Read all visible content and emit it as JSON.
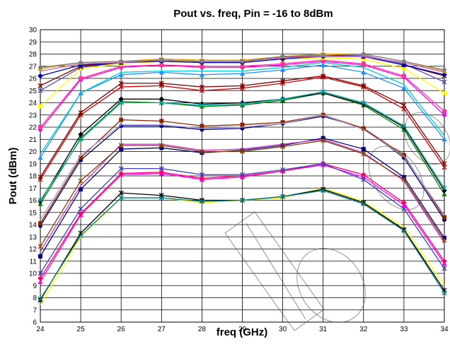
{
  "chart_data": {
    "type": "line",
    "title": "Pout vs. freq, Pin = -16 to 8dBm",
    "xlabel": "freq (GHz)",
    "ylabel": "Pout (dBm)",
    "xlim": [
      24,
      34
    ],
    "ylim": [
      6,
      30
    ],
    "x": [
      24,
      25,
      26,
      27,
      28,
      29,
      30,
      31,
      32,
      33,
      34
    ],
    "x_ticks": [
      "24",
      "25",
      "26",
      "27",
      "28",
      "29",
      "30",
      "31",
      "32",
      "33",
      "34"
    ],
    "y_ticks": [
      "6",
      "7",
      "8",
      "9",
      "10",
      "11",
      "12",
      "13",
      "14",
      "15",
      "16",
      "17",
      "18",
      "19",
      "20",
      "21",
      "22",
      "23",
      "24",
      "25",
      "26",
      "27",
      "28",
      "29",
      "30"
    ],
    "grid": true,
    "legend": "none",
    "series": [
      {
        "color": "#ffff00",
        "marker": "none",
        "values": [
          7.4,
          13.0,
          16.2,
          16.2,
          15.8,
          16.0,
          16.2,
          17.0,
          15.9,
          13.8,
          9.0
        ]
      },
      {
        "color": "#000000",
        "marker": "star",
        "values": [
          7.8,
          13.3,
          16.6,
          16.4,
          16.0,
          16.0,
          16.3,
          16.9,
          15.8,
          13.6,
          8.6
        ]
      },
      {
        "color": "#008080",
        "marker": "x",
        "values": [
          7.9,
          13.1,
          16.2,
          16.2,
          15.9,
          16.0,
          16.3,
          16.8,
          15.7,
          13.5,
          8.4
        ]
      },
      {
        "color": "#ff00ff",
        "marker": "triangle",
        "values": [
          9.3,
          14.8,
          18.1,
          18.2,
          17.7,
          17.9,
          18.4,
          18.9,
          17.9,
          15.6,
          10.8
        ]
      },
      {
        "color": "#ff0066",
        "marker": "diamond",
        "values": [
          9.6,
          14.9,
          18.2,
          18.3,
          17.8,
          18.0,
          18.4,
          19.0,
          18.1,
          15.8,
          11.0
        ]
      },
      {
        "color": "#4040c0",
        "marker": "x",
        "values": [
          10.0,
          15.3,
          18.6,
          18.6,
          18.1,
          18.1,
          18.5,
          19.0,
          17.7,
          15.3,
          10.4
        ]
      },
      {
        "color": "#000080",
        "marker": "square",
        "values": [
          11.4,
          16.9,
          20.2,
          20.3,
          19.9,
          20.1,
          20.5,
          21.1,
          20.2,
          17.9,
          12.9
        ]
      },
      {
        "color": "#cc33cc",
        "marker": "none",
        "values": [
          11.8,
          17.2,
          20.6,
          20.6,
          20.1,
          20.2,
          20.6,
          21.0,
          19.9,
          17.6,
          12.5
        ]
      },
      {
        "color": "#804000",
        "marker": "star",
        "values": [
          12.2,
          17.6,
          20.5,
          20.5,
          20.0,
          20.0,
          20.4,
          20.9,
          19.8,
          17.7,
          12.7
        ]
      },
      {
        "color": "#000080",
        "marker": "circle",
        "values": [
          13.9,
          19.3,
          22.1,
          22.1,
          21.8,
          21.9,
          22.3,
          22.9,
          21.9,
          19.5,
          14.4
        ]
      },
      {
        "color": "#8b2500",
        "marker": "square",
        "values": [
          14.1,
          19.5,
          22.6,
          22.5,
          22.1,
          22.2,
          22.4,
          23.0,
          21.9,
          19.7,
          14.6
        ]
      },
      {
        "color": "#b0a0d0",
        "marker": "none",
        "values": [
          14.4,
          19.7,
          22.2,
          22.2,
          21.9,
          22.0,
          22.3,
          23.0,
          21.8,
          19.6,
          14.8
        ]
      },
      {
        "color": "#008000",
        "marker": "triangle",
        "values": [
          15.7,
          21.1,
          24.1,
          24.0,
          23.7,
          23.8,
          24.2,
          24.8,
          23.8,
          21.8,
          16.5
        ]
      },
      {
        "color": "#000000",
        "marker": "diamond",
        "values": [
          15.9,
          21.4,
          24.3,
          24.3,
          23.9,
          24.0,
          24.3,
          24.8,
          23.9,
          22.0,
          16.8
        ]
      },
      {
        "color": "#00aaaa",
        "marker": "x",
        "values": [
          16.0,
          21.0,
          24.0,
          24.0,
          23.8,
          23.9,
          24.3,
          24.9,
          24.0,
          22.1,
          17.0
        ]
      },
      {
        "color": "#cc0000",
        "marker": "x",
        "values": [
          17.7,
          23.0,
          25.3,
          25.4,
          25.0,
          25.2,
          25.6,
          26.1,
          25.3,
          23.5,
          18.7
        ]
      },
      {
        "color": "#800000",
        "marker": "star",
        "values": [
          17.9,
          23.2,
          25.6,
          25.6,
          25.3,
          25.4,
          25.8,
          26.2,
          25.4,
          23.8,
          19.0
        ]
      },
      {
        "color": "#1e90ff",
        "marker": "triangle",
        "values": [
          19.5,
          24.8,
          26.3,
          26.5,
          26.3,
          26.4,
          26.7,
          27.1,
          26.5,
          25.2,
          21.0
        ]
      },
      {
        "color": "#00cccc",
        "marker": "none",
        "values": [
          19.8,
          24.8,
          26.5,
          26.6,
          26.6,
          26.6,
          26.9,
          27.3,
          26.9,
          25.5,
          21.3
        ]
      },
      {
        "color": "#ff00ff",
        "marker": "circle",
        "values": [
          21.8,
          25.9,
          26.9,
          27.1,
          26.9,
          26.9,
          27.1,
          27.4,
          27.1,
          26.1,
          23.0
        ]
      },
      {
        "color": "#ff3399",
        "marker": "square",
        "values": [
          22.0,
          26.0,
          27.0,
          27.1,
          27.0,
          27.0,
          27.2,
          27.5,
          27.2,
          26.2,
          23.3
        ]
      },
      {
        "color": "#ffff00",
        "marker": "square",
        "values": [
          23.7,
          26.8,
          27.2,
          27.4,
          27.3,
          27.3,
          27.6,
          27.7,
          27.6,
          26.8,
          24.8
        ]
      },
      {
        "color": "#5050c0",
        "marker": "x",
        "values": [
          25.0,
          26.9,
          27.3,
          27.5,
          27.4,
          27.4,
          27.7,
          27.9,
          27.9,
          27.2,
          25.7
        ]
      },
      {
        "color": "#800000",
        "marker": "x",
        "values": [
          25.4,
          27.0,
          27.3,
          27.5,
          27.4,
          27.4,
          27.7,
          27.9,
          27.8,
          27.1,
          26.2
        ]
      },
      {
        "color": "#0000aa",
        "marker": "diamond",
        "values": [
          26.2,
          27.1,
          27.3,
          27.4,
          27.3,
          27.3,
          27.6,
          27.8,
          27.8,
          27.1,
          26.3
        ]
      },
      {
        "color": "#cc66cc",
        "marker": "none",
        "values": [
          26.6,
          27.2,
          27.3,
          27.5,
          27.4,
          27.4,
          27.7,
          27.8,
          27.8,
          27.3,
          26.5
        ]
      },
      {
        "color": "#e0a000",
        "marker": "triangle",
        "values": [
          26.8,
          27.3,
          27.4,
          27.6,
          27.5,
          27.5,
          27.8,
          28.0,
          28.0,
          27.4,
          26.6
        ]
      },
      {
        "color": "#808080",
        "marker": "circle",
        "values": [
          26.9,
          27.3,
          27.4,
          27.5,
          27.4,
          27.4,
          27.8,
          27.9,
          28.0,
          27.4,
          26.7
        ]
      }
    ]
  }
}
